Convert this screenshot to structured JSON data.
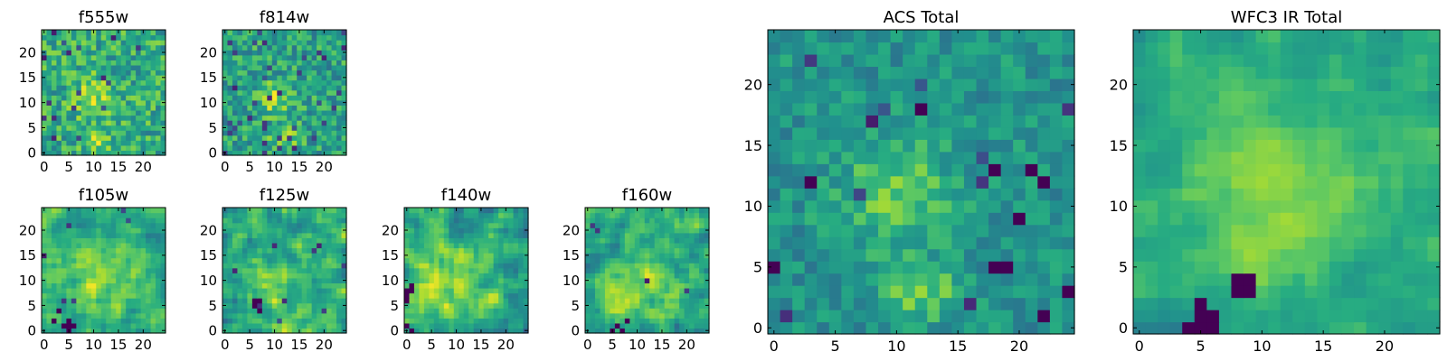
{
  "chart_data": [
    {
      "type": "heatmap",
      "title": "f555w",
      "xlabel": "",
      "ylabel": "",
      "grid_size": 25,
      "xlim": [
        -0.5,
        24.5
      ],
      "ylim": [
        -0.5,
        24.5
      ],
      "xticks": [
        0,
        5,
        10,
        15,
        20
      ],
      "yticks": [
        0,
        5,
        10,
        15,
        20
      ],
      "colormap": "viridis",
      "grid": false,
      "seed": 11,
      "blobs": [
        {
          "cx": 10,
          "cy": 11,
          "sx": 3.0,
          "sy": 3.0,
          "amp": 0.22
        },
        {
          "cx": 11,
          "cy": 2,
          "sx": 2.0,
          "sy": 1.5,
          "amp": 0.22
        }
      ],
      "background": 0.62,
      "noise": 0.42,
      "smooth": 0,
      "dark_pixel_rate": 0.04
    },
    {
      "type": "heatmap",
      "title": "f814w",
      "xlabel": "",
      "ylabel": "",
      "grid_size": 25,
      "xlim": [
        -0.5,
        24.5
      ],
      "ylim": [
        -0.5,
        24.5
      ],
      "xticks": [
        0,
        5,
        10,
        15,
        20
      ],
      "yticks": [
        0,
        5,
        10,
        15,
        20
      ],
      "colormap": "viridis",
      "grid": false,
      "seed": 23,
      "blobs": [
        {
          "cx": 10,
          "cy": 11,
          "sx": 2.5,
          "sy": 2.2,
          "amp": 0.3
        },
        {
          "cx": 12,
          "cy": 3,
          "sx": 1.8,
          "sy": 1.5,
          "amp": 0.3
        }
      ],
      "background": 0.58,
      "noise": 0.4,
      "smooth": 0,
      "dark_pixel_rate": 0.05
    },
    {
      "type": "heatmap",
      "title": "f105w",
      "xlabel": "",
      "ylabel": "",
      "grid_size": 25,
      "xlim": [
        -0.5,
        24.5
      ],
      "ylim": [
        -0.5,
        24.5
      ],
      "xticks": [
        0,
        5,
        10,
        15,
        20
      ],
      "yticks": [
        0,
        5,
        10,
        15,
        20
      ],
      "colormap": "viridis",
      "grid": false,
      "seed": 37,
      "blobs": [
        {
          "cx": 12,
          "cy": 10,
          "sx": 5.0,
          "sy": 5.0,
          "amp": 0.22
        }
      ],
      "background": 0.62,
      "noise": 0.45,
      "smooth": 1,
      "dark_pixel_rate": 0.01,
      "dark_spots": [
        [
          5,
          1
        ],
        [
          4,
          1
        ],
        [
          5,
          0
        ],
        [
          6,
          1
        ],
        [
          5,
          2
        ],
        [
          2,
          2
        ],
        [
          3,
          4
        ]
      ]
    },
    {
      "type": "heatmap",
      "title": "f125w",
      "xlabel": "",
      "ylabel": "",
      "grid_size": 25,
      "xlim": [
        -0.5,
        24.5
      ],
      "ylim": [
        -0.5,
        24.5
      ],
      "xticks": [
        0,
        5,
        10,
        15,
        20
      ],
      "yticks": [
        0,
        5,
        10,
        15,
        20
      ],
      "colormap": "viridis",
      "grid": false,
      "seed": 41,
      "blobs": [
        {
          "cx": 11,
          "cy": 8,
          "sx": 5.0,
          "sy": 5.0,
          "amp": 0.18
        }
      ],
      "background": 0.6,
      "noise": 0.55,
      "smooth": 1,
      "dark_pixel_rate": 0.01,
      "dark_spots": [
        [
          6,
          5
        ],
        [
          7,
          6
        ],
        [
          6,
          6
        ],
        [
          7,
          4
        ]
      ]
    },
    {
      "type": "heatmap",
      "title": "f140w",
      "xlabel": "",
      "ylabel": "",
      "grid_size": 25,
      "xlim": [
        -0.5,
        24.5
      ],
      "ylim": [
        -0.5,
        24.5
      ],
      "xticks": [
        0,
        5,
        10,
        15,
        20
      ],
      "yticks": [
        0,
        5,
        10,
        15,
        20
      ],
      "colormap": "viridis",
      "grid": false,
      "seed": 53,
      "blobs": [
        {
          "cx": 9,
          "cy": 9,
          "sx": 5.0,
          "sy": 5.0,
          "amp": 0.22
        }
      ],
      "background": 0.62,
      "noise": 0.5,
      "smooth": 1,
      "dark_pixel_rate": 0.005,
      "dark_spots": [
        [
          0,
          7
        ],
        [
          0,
          8
        ],
        [
          1,
          8
        ],
        [
          0,
          6
        ],
        [
          1,
          9
        ],
        [
          0,
          1
        ],
        [
          1,
          0
        ]
      ]
    },
    {
      "type": "heatmap",
      "title": "f160w",
      "xlabel": "",
      "ylabel": "",
      "grid_size": 25,
      "xlim": [
        -0.5,
        24.5
      ],
      "ylim": [
        -0.5,
        24.5
      ],
      "xticks": [
        0,
        5,
        10,
        15,
        20
      ],
      "yticks": [
        0,
        5,
        10,
        15,
        20
      ],
      "colormap": "viridis",
      "grid": false,
      "seed": 67,
      "blobs": [
        {
          "cx": 10,
          "cy": 9,
          "sx": 5.0,
          "sy": 5.0,
          "amp": 0.2
        }
      ],
      "background": 0.62,
      "noise": 0.5,
      "smooth": 1,
      "dark_pixel_rate": 0.005,
      "dark_spots": [
        [
          5,
          0
        ],
        [
          6,
          1
        ],
        [
          8,
          2
        ],
        [
          7,
          0
        ]
      ]
    },
    {
      "type": "heatmap",
      "title": "ACS Total",
      "xlabel": "",
      "ylabel": "",
      "grid_size": 25,
      "xlim": [
        -0.5,
        24.5
      ],
      "ylim": [
        -0.5,
        24.5
      ],
      "xticks": [
        0,
        5,
        10,
        15,
        20
      ],
      "yticks": [
        0,
        5,
        10,
        15,
        20
      ],
      "colormap": "viridis",
      "grid": false,
      "seed": 79,
      "blobs": [
        {
          "cx": 10,
          "cy": 11,
          "sx": 3.2,
          "sy": 3.0,
          "amp": 0.25
        },
        {
          "cx": 12,
          "cy": 3,
          "sx": 2.2,
          "sy": 1.6,
          "amp": 0.25
        }
      ],
      "background": 0.52,
      "noise": 0.26,
      "smooth": 0,
      "dark_pixel_rate": 0.025,
      "dark_spots": [
        [
          12,
          18
        ],
        [
          18,
          13
        ],
        [
          21,
          13
        ],
        [
          22,
          12
        ],
        [
          20,
          9
        ],
        [
          19,
          5
        ],
        [
          18,
          5
        ],
        [
          24,
          3
        ],
        [
          22,
          1
        ],
        [
          0,
          5
        ],
        [
          3,
          12
        ]
      ]
    },
    {
      "type": "heatmap",
      "title": "WFC3 IR Total",
      "xlabel": "",
      "ylabel": "",
      "grid_size": 25,
      "xlim": [
        -0.5,
        24.5
      ],
      "ylim": [
        -0.5,
        24.5
      ],
      "xticks": [
        0,
        5,
        10,
        15,
        20
      ],
      "yticks": [
        0,
        5,
        10,
        15,
        20
      ],
      "colormap": "viridis",
      "grid": false,
      "seed": 97,
      "blobs": [
        {
          "cx": 11,
          "cy": 11,
          "sx": 5.0,
          "sy": 5.0,
          "amp": 0.22
        },
        {
          "cx": 7,
          "cy": 20,
          "sx": 2.0,
          "sy": 2.0,
          "amp": 0.12
        }
      ],
      "background": 0.6,
      "noise": 0.25,
      "smooth": 1,
      "dark_pixel_rate": 0.0,
      "dark_spots": [
        [
          5,
          0
        ],
        [
          6,
          0
        ],
        [
          4,
          0
        ],
        [
          5,
          1
        ],
        [
          6,
          1
        ],
        [
          5,
          2
        ],
        [
          8,
          4
        ],
        [
          9,
          4
        ],
        [
          8,
          3
        ],
        [
          9,
          3
        ]
      ]
    }
  ]
}
